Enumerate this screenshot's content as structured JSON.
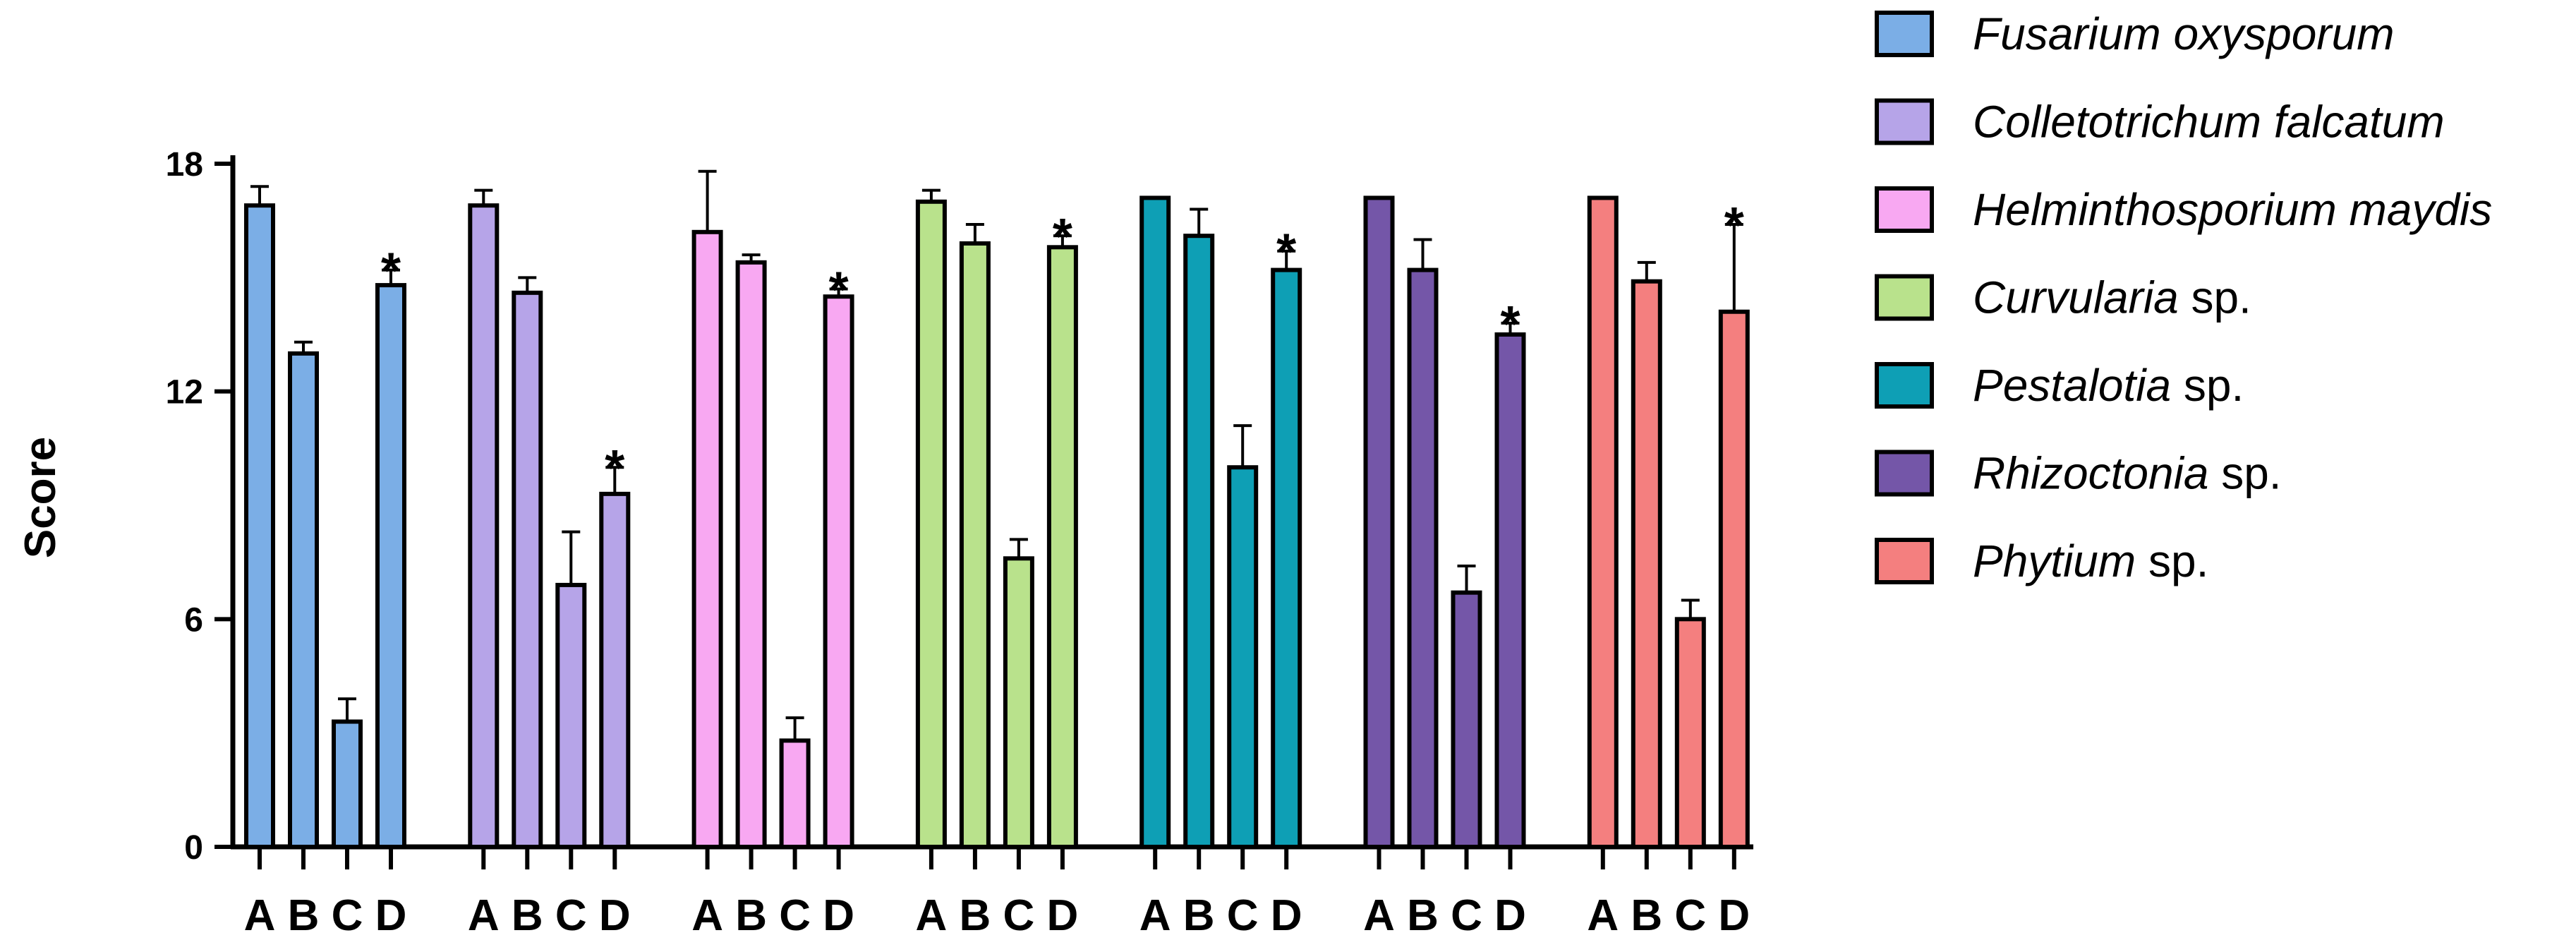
{
  "chart_data": {
    "type": "bar",
    "ylabel": "Score",
    "ylim": [
      0,
      18
    ],
    "yticks": [
      0,
      6,
      12,
      18
    ],
    "categories": [
      "A",
      "B",
      "C",
      "D"
    ],
    "annotation_symbol": "*",
    "series": [
      {
        "name": "Fusarium oxysporum",
        "name_italic": "Fusarium oxysporum",
        "name_rest": "",
        "color": "#7BAEE6",
        "values": [
          16.9,
          13.0,
          3.3,
          14.8
        ],
        "errors": [
          0.5,
          0.3,
          0.6,
          0.4
        ],
        "annotated": [
          false,
          false,
          false,
          true
        ]
      },
      {
        "name": "Colletotrichum falcatum",
        "name_italic": "Colletotrichum falcatum",
        "name_rest": "",
        "color": "#B6A4E8",
        "values": [
          16.9,
          14.6,
          6.9,
          9.3
        ],
        "errors": [
          0.4,
          0.4,
          1.4,
          0.7
        ],
        "annotated": [
          false,
          false,
          false,
          true
        ]
      },
      {
        "name": "Helminthosporium maydis",
        "name_italic": "Helminthosporium maydis",
        "name_rest": "",
        "color": "#F8A8F2",
        "values": [
          16.2,
          15.4,
          2.8,
          14.5
        ],
        "errors": [
          1.6,
          0.2,
          0.6,
          0.2
        ],
        "annotated": [
          false,
          false,
          false,
          true
        ]
      },
      {
        "name": "Curvularia sp.",
        "name_italic": "Curvularia",
        "name_rest": " sp.",
        "color": "#B9E28C",
        "values": [
          17.0,
          15.9,
          7.6,
          15.8
        ],
        "errors": [
          0.3,
          0.5,
          0.5,
          0.3
        ],
        "annotated": [
          false,
          false,
          false,
          true
        ]
      },
      {
        "name": "Pestalotia sp.",
        "name_italic": "Pestalotia",
        "name_rest": " sp.",
        "color": "#0E9FB5",
        "values": [
          17.1,
          16.1,
          10.0,
          15.2
        ],
        "errors": [
          0.0,
          0.7,
          1.1,
          0.5
        ],
        "annotated": [
          false,
          false,
          false,
          true
        ]
      },
      {
        "name": "Rhizoctonia sp.",
        "name_italic": "Rhizoctonia",
        "name_rest": " sp.",
        "color": "#7456A8",
        "values": [
          17.1,
          15.2,
          6.7,
          13.5
        ],
        "errors": [
          0.0,
          0.8,
          0.7,
          0.3
        ],
        "annotated": [
          false,
          false,
          false,
          true
        ]
      },
      {
        "name": "Phytium sp.",
        "name_italic": "Phytium",
        "name_rest": " sp.",
        "color": "#F47F7F",
        "values": [
          17.1,
          14.9,
          6.0,
          14.1
        ],
        "errors": [
          0.0,
          0.5,
          0.5,
          2.3
        ],
        "annotated": [
          false,
          false,
          false,
          true
        ]
      }
    ],
    "legend_position": "right",
    "grid": false
  }
}
